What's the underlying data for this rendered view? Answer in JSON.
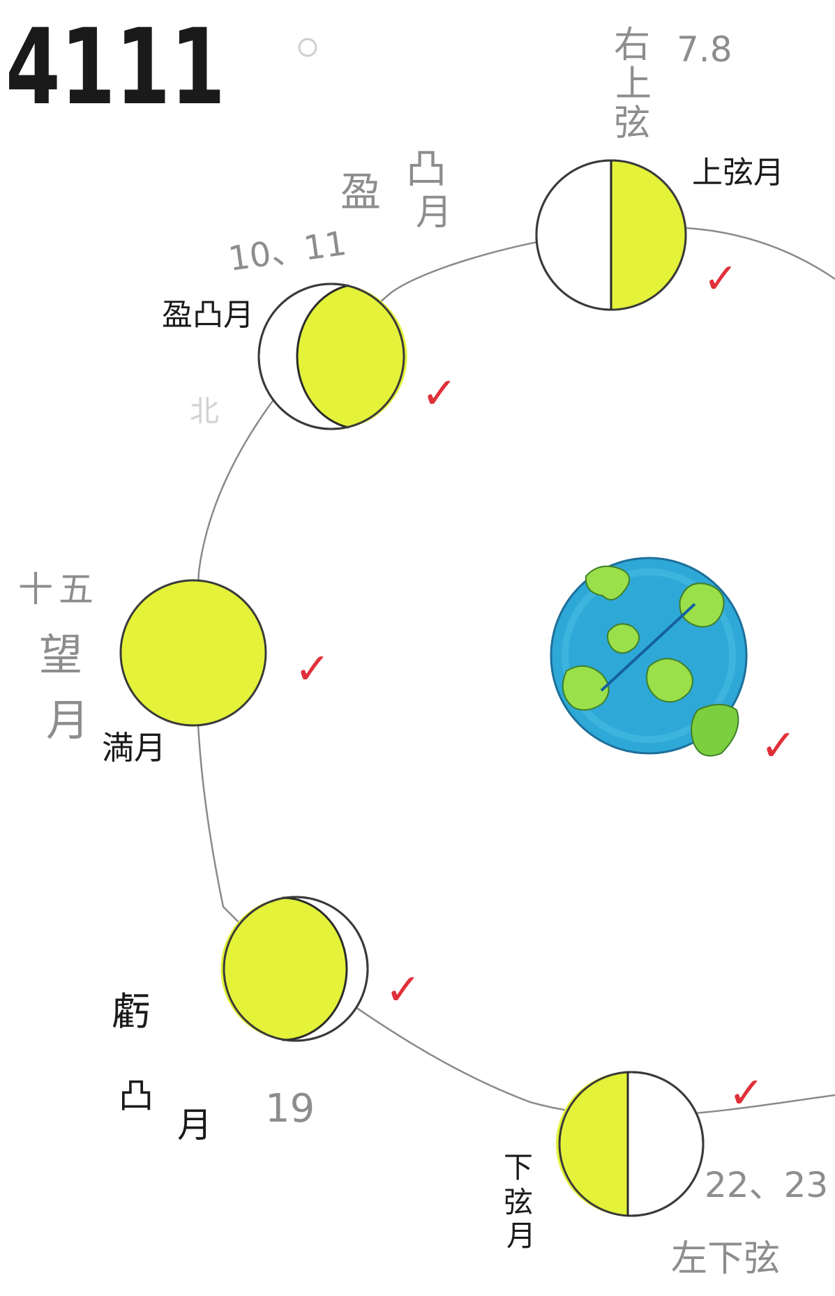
{
  "header": {
    "class_number": "4111"
  },
  "colors": {
    "moon_lit": "#e4f23a",
    "moon_outline": "#3a3a3a",
    "earth_ocean": "#2ea8d6",
    "earth_land": "#9be04a",
    "check_mark": "#e0303a",
    "orbit": "#8a8a8a"
  },
  "phases": {
    "first_quarter": {
      "label": "上弦月",
      "pencil_title": [
        "右",
        "上",
        "弦"
      ],
      "pencil_days": "7.8",
      "check": "✓"
    },
    "waxing_gibbous": {
      "label": "盈凸月",
      "pencil_title": [
        "盈",
        "凸",
        "月"
      ],
      "pencil_days": "10、11",
      "faint_note": "北",
      "check": "✓"
    },
    "full": {
      "label": "満月",
      "pencil_title": [
        "十",
        "五",
        "望",
        "月"
      ],
      "check": "✓"
    },
    "waning_gibbous": {
      "label_chars": [
        "虧",
        "凸",
        "月"
      ],
      "pencil_days": "19",
      "check": "✓"
    },
    "last_quarter": {
      "label_chars": [
        "下",
        "弦",
        "月"
      ],
      "pencil_days": "22、23",
      "pencil_note": "左下弦",
      "check": "✓"
    }
  },
  "earth": {
    "icon": "earth-icon",
    "check": "✓"
  }
}
